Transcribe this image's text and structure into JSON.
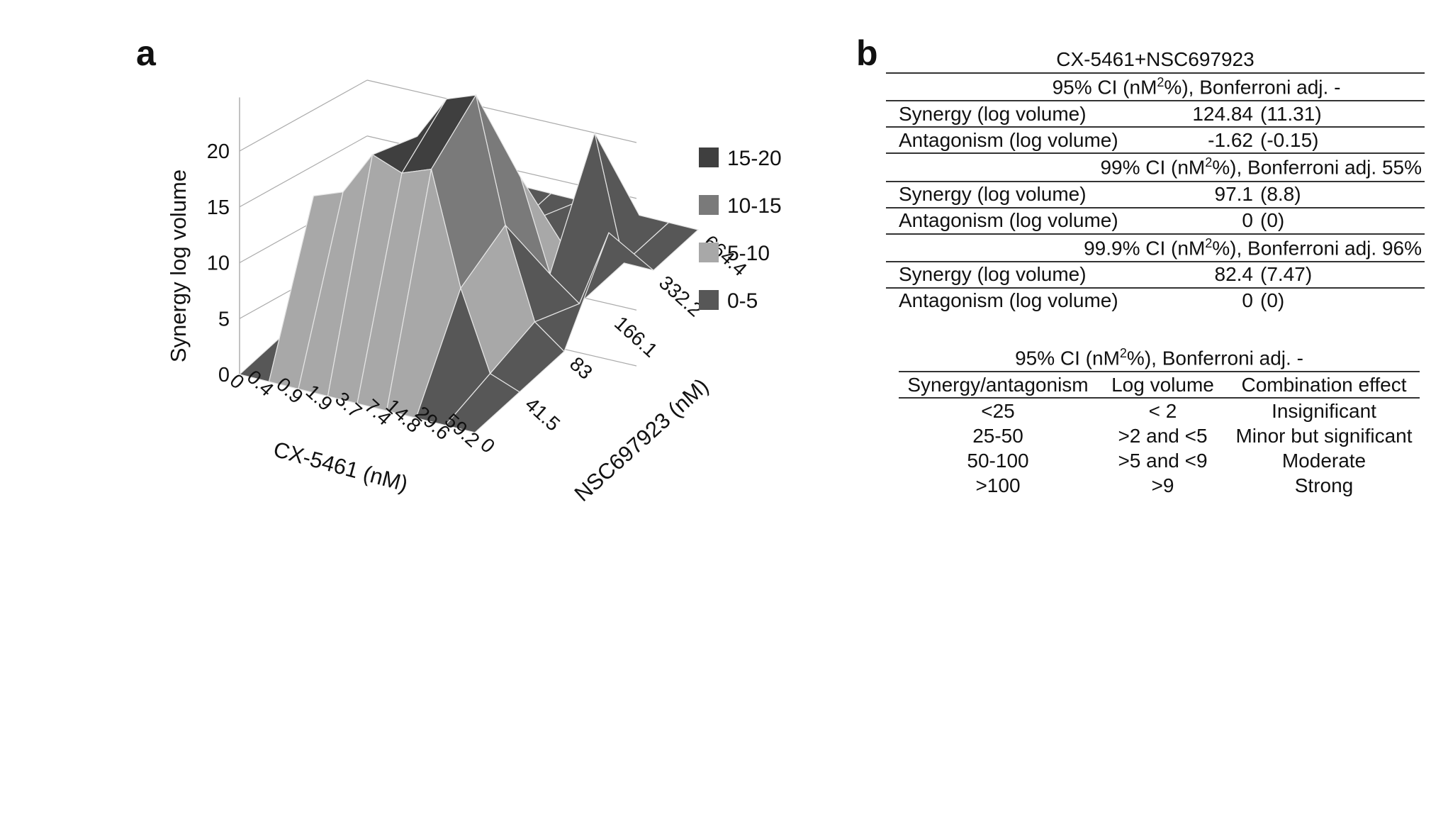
{
  "panel_a_label": "a",
  "panel_b_label": "b",
  "chart_data": {
    "type": "surface",
    "title": "",
    "zlabel": "Synergy log volume",
    "xlabel": "CX-5461 (nM)",
    "ylabel": "NSC697923 (nM)",
    "x_ticks": [
      "0",
      "0.4",
      "0.9",
      "1.9",
      "3.7",
      "7.4",
      "14.8",
      "29.6",
      "59.2"
    ],
    "y_ticks": [
      "0",
      "41.5",
      "83",
      "166.1",
      "332.2",
      "664.4"
    ],
    "z_ticks": [
      "0",
      "5",
      "10",
      "15",
      "20"
    ],
    "zlim": [
      0,
      20
    ],
    "z": [
      [
        0,
        0,
        0,
        0,
        0,
        0
      ],
      [
        0,
        13,
        9,
        2,
        0,
        0
      ],
      [
        0,
        14,
        13,
        10,
        0,
        0
      ],
      [
        0,
        18,
        16,
        10,
        0,
        0
      ],
      [
        0,
        17,
        20,
        13,
        2,
        0
      ],
      [
        0,
        18,
        21,
        10,
        0,
        0
      ],
      [
        0,
        8,
        10,
        2,
        11,
        0
      ],
      [
        0,
        1,
        2,
        0,
        0,
        0
      ],
      [
        0,
        0,
        0,
        7,
        0,
        0
      ]
    ],
    "legend": [
      {
        "label": "15-20",
        "color": "#3f3f3f"
      },
      {
        "label": "10-15",
        "color": "#7a7a7a"
      },
      {
        "label": "5-10",
        "color": "#a8a8a8"
      },
      {
        "label": "0-5",
        "color": "#575757"
      }
    ]
  },
  "stats": {
    "title": "CX-5461+NSC697923",
    "sections": [
      {
        "header_pre": "95% CI (nM",
        "header_sup": "2",
        "header_post": "%), Bonferroni adj. -",
        "rows": [
          {
            "label": "Synergy (log volume)",
            "value": "124.84",
            "ci": "(11.31)"
          },
          {
            "label": "Antagonism (log volume)",
            "value": "-1.62",
            "ci": "(-0.15)"
          }
        ]
      },
      {
        "header_pre": "99% CI (nM",
        "header_sup": "2",
        "header_post": "%), Bonferroni adj. 55%",
        "rows": [
          {
            "label": "Synergy (log volume)",
            "value": "97.1",
            "ci": "(8.8)"
          },
          {
            "label": "Antagonism (log volume)",
            "value": "0",
            "ci": "(0)"
          }
        ]
      },
      {
        "header_pre": "99.9% CI (nM",
        "header_sup": "2",
        "header_post": "%), Bonferroni adj. 96%",
        "rows": [
          {
            "label": "Synergy (log volume)",
            "value": "82.4",
            "ci": "(7.47)"
          },
          {
            "label": "Antagonism (log volume)",
            "value": "0",
            "ci": "(0)"
          }
        ]
      }
    ]
  },
  "interpretation": {
    "title_pre": "95% CI (nM",
    "title_sup": "2",
    "title_post": "%), Bonferroni adj. -",
    "headers": [
      "Synergy/antagonism",
      "Log volume",
      "Combination effect"
    ],
    "rows": [
      [
        "<25",
        "< 2",
        "Insignificant"
      ],
      [
        "25-50",
        ">2 and <5",
        "Minor but significant"
      ],
      [
        "50-100",
        ">5 and <9",
        "Moderate"
      ],
      [
        ">100",
        ">9",
        "Strong"
      ]
    ]
  }
}
